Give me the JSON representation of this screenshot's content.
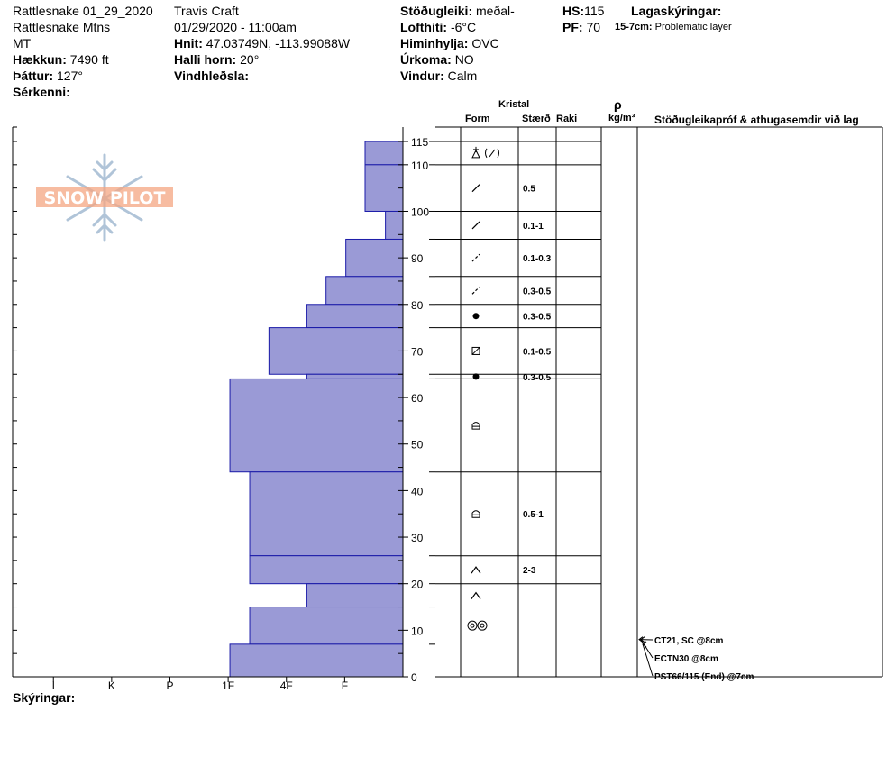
{
  "header": {
    "col1": {
      "site": "Rattlesnake 01_29_2020",
      "range": "Rattlesnake Mtns",
      "state": "MT",
      "elevation_label": "Hækkun:",
      "elevation_value": "7490 ft",
      "aspect_label": "Þáttur:",
      "aspect_value": "127°",
      "notes_label": "Sérkenni:"
    },
    "col2": {
      "observer": "Travis  Craft",
      "datetime": "01/29/2020 - 11:00am",
      "coords_label": "Hnit:",
      "coords_value": "47.03749N, -113.99088W",
      "slope_label": "Halli horn:",
      "slope_value": "20°",
      "wind_loading_label": "Vindhleðsla:"
    },
    "col3": {
      "stability_label": "Stöðugleiki:",
      "stability_value": "meðal-",
      "air_temp_label": "Lofthiti:",
      "air_temp_value": "-6°C",
      "sky_label": "Himinhylja:",
      "sky_value": "OVC",
      "precip_label": "Úrkoma:",
      "precip_value": "NO",
      "wind_label": "Vindur:",
      "wind_value": "Calm"
    },
    "col4": {
      "hs_label": "HS:",
      "hs_value": "115",
      "pf_label": "PF:",
      "pf_value": "70",
      "layer_notes_label": "Lagaskýringar:",
      "layer_note_range": "15-7cm:",
      "layer_note_text": "Problematic layer"
    }
  },
  "logo": {
    "text": "SNOW PILOT",
    "icon": "snowflake-icon"
  },
  "legend_label": "Skýringar:",
  "table_headers": {
    "crystal": "Kristal",
    "form": "Form",
    "size": "Stærð",
    "moisture": "Raki",
    "density_symbol": "ρ",
    "density_unit": "kg/m³",
    "tests": "Stöðugleikapróf & athugasemdir við lag"
  },
  "colors": {
    "bar_fill": "#9a9ad6",
    "bar_stroke": "#1a1aa8",
    "logo_orange": "#f4a582",
    "logo_blue": "#b0c4d8"
  },
  "chart_data": {
    "type": "bar",
    "orientation": "horizontal",
    "xlabel": "",
    "ylabel": "",
    "y_axis_ticks": [
      "0",
      "10",
      "20",
      "30",
      "40",
      "50",
      "60",
      "70",
      "80",
      "90",
      "100",
      "110",
      "115"
    ],
    "y_axis_values": [
      0,
      10,
      20,
      30,
      40,
      50,
      60,
      70,
      80,
      90,
      100,
      110,
      115
    ],
    "ylim": [
      0,
      115
    ],
    "hardness_ticks": [
      "I",
      "K",
      "P",
      "1F",
      "4F",
      "F"
    ],
    "hardness_scale": {
      "F": 1,
      "4F": 2,
      "1F": 3,
      "P": 4,
      "K": 5,
      "I": 6
    },
    "hardness_max": 6.7,
    "layers": [
      {
        "bottom": 110,
        "top": 115,
        "hardness": 0.65
      },
      {
        "bottom": 100,
        "top": 110,
        "hardness": 0.65
      },
      {
        "bottom": 94,
        "top": 100,
        "hardness": 0.3
      },
      {
        "bottom": 86,
        "top": 94,
        "hardness": 0.98
      },
      {
        "bottom": 80,
        "top": 86,
        "hardness": 1.32
      },
      {
        "bottom": 75,
        "top": 80,
        "hardness": 1.65
      },
      {
        "bottom": 65,
        "top": 75,
        "hardness": 2.3
      },
      {
        "bottom": 64,
        "top": 65,
        "hardness": 1.65
      },
      {
        "bottom": 44,
        "top": 64,
        "hardness": 2.97
      },
      {
        "bottom": 26,
        "top": 44,
        "hardness": 2.63
      },
      {
        "bottom": 20,
        "top": 26,
        "hardness": 2.63
      },
      {
        "bottom": 15,
        "top": 20,
        "hardness": 1.65
      },
      {
        "bottom": 7,
        "top": 15,
        "hardness": 2.63
      },
      {
        "bottom": 0,
        "top": 7,
        "hardness": 2.97
      }
    ],
    "crystal_rows": [
      {
        "top": 115,
        "bottom": 110,
        "center": 110.5,
        "form": "combo",
        "size": ""
      },
      {
        "top": 110,
        "bottom": 100,
        "center": 100.5,
        "form": "fragment",
        "size": "0.5"
      },
      {
        "top": 100,
        "bottom": 94,
        "center": 90.5,
        "form": "fragment",
        "size": "0.1-1"
      },
      {
        "top": 94,
        "bottom": 86,
        "center": 81.5,
        "form": "fragment-dot",
        "size": "0.1-0.3"
      },
      {
        "top": 86,
        "bottom": 80,
        "center": 77,
        "form": "fragment-dot",
        "size": "0.3-0.5"
      },
      {
        "top": 80,
        "bottom": 75,
        "center": 70,
        "form": "round",
        "size": "0.3-0.5"
      },
      {
        "top": 75,
        "bottom": 65,
        "center": 64,
        "form": "facet",
        "size": "0.1-0.5"
      },
      {
        "top": 65,
        "bottom": 64,
        "center": 53,
        "form": "round",
        "size": "0.3-0.5"
      },
      {
        "top": 64,
        "bottom": 44,
        "center": 34,
        "form": "cup",
        "size": ""
      },
      {
        "top": 44,
        "bottom": 26,
        "center": 22.5,
        "form": "cup",
        "size": "0.5-1"
      },
      {
        "top": 26,
        "bottom": 20,
        "center": 17,
        "form": "depth",
        "size": "2-3"
      },
      {
        "top": 20,
        "bottom": 15,
        "center": 10.5,
        "form": "depth",
        "size": ""
      },
      {
        "top": 15,
        "bottom": 7,
        "center": 3.5,
        "form": "ice",
        "size": ""
      }
    ],
    "tests": [
      {
        "depth_cm": 8,
        "label": "CT21, SC @8cm"
      },
      {
        "depth_cm": 8,
        "label": "ECTN30 @8cm"
      },
      {
        "depth_cm": 7,
        "label": "PST66/115 (End) @7cm"
      }
    ]
  }
}
